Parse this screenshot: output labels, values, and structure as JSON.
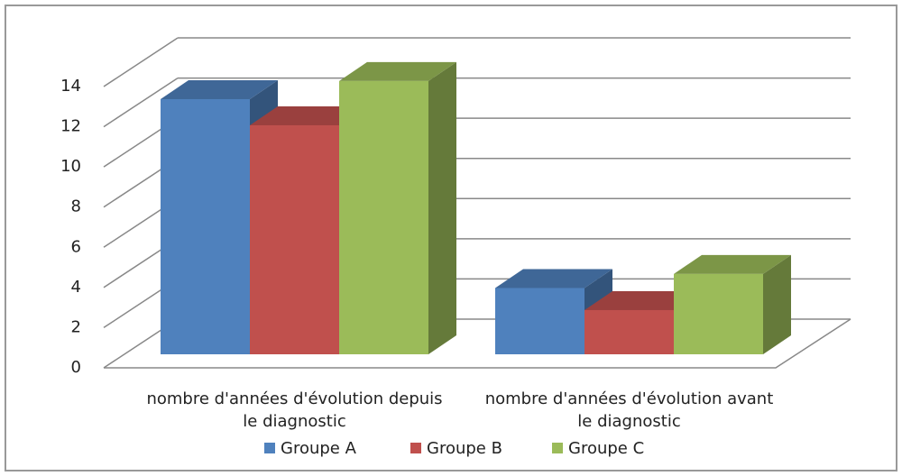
{
  "chart_data": {
    "type": "bar3d",
    "categories": [
      "nombre d'années d'évolution depuis le diagnostic",
      "nombre d'années d'évolution avant le diagnostic"
    ],
    "series": [
      {
        "name": "Groupe A",
        "color": "#4f81bd",
        "values": [
          12.7,
          3.3
        ]
      },
      {
        "name": "Groupe B",
        "color": "#c0504d",
        "values": [
          11.4,
          2.2
        ]
      },
      {
        "name": "Groupe C",
        "color": "#9bbb59",
        "values": [
          13.6,
          4.0
        ]
      }
    ],
    "ylim": [
      0,
      14
    ],
    "yticks": [
      0,
      2,
      4,
      6,
      8,
      10,
      12,
      14
    ],
    "grid": true,
    "legend": "bottom"
  }
}
